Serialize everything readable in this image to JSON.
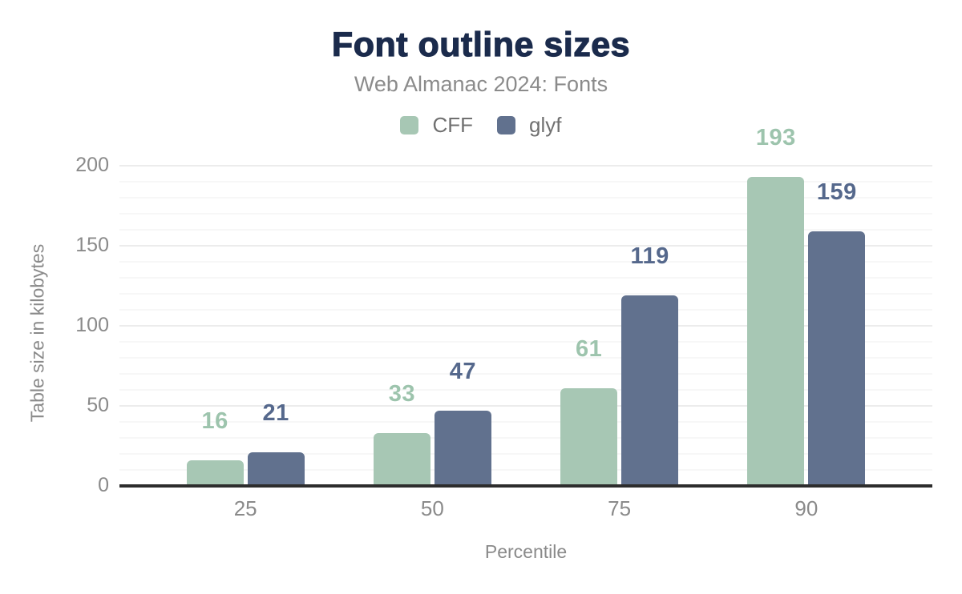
{
  "chart_data": {
    "type": "bar",
    "title": "Font outline sizes",
    "subtitle": "Web Almanac 2024: Fonts",
    "xlabel": "Percentile",
    "ylabel": "Table size in kilobytes",
    "categories": [
      "25",
      "50",
      "75",
      "90"
    ],
    "series": [
      {
        "name": "CFF",
        "values": [
          16,
          33,
          61,
          193
        ],
        "color": "#a7c7b4",
        "label_color": "#9dc4ad"
      },
      {
        "name": "glyf",
        "values": [
          21,
          47,
          119,
          159
        ],
        "color": "#61718e",
        "label_color": "#55688c"
      }
    ],
    "ylim": [
      0,
      200
    ],
    "yticks": [
      0,
      50,
      100,
      150,
      200
    ],
    "grid": {
      "minor_step": 10,
      "major_step": 50,
      "enabled": true
    },
    "legend_position": "top",
    "data_labels": true
  },
  "colors": {
    "title": "#1b2b4c",
    "subtitle": "#8b8b8b",
    "axis_text": "#8a8a8a",
    "legend_text": "#707070",
    "axis_line": "#2d2d2d",
    "grid_minor": "#f7f7f7",
    "grid_major": "#ececec",
    "background": "#ffffff"
  }
}
